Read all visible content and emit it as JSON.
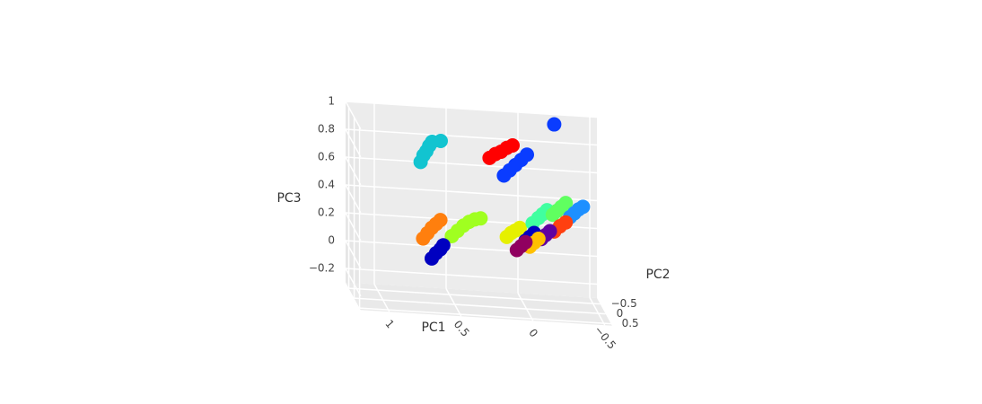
{
  "chart_data": {
    "type": "scatter3d",
    "xlabel": "PC1",
    "ylabel": "PC2",
    "zlabel": "PC3",
    "xlim": [
      -0.55,
      1.2
    ],
    "ylim": [
      -0.8,
      0.6
    ],
    "zlim": [
      -0.3,
      1.0
    ],
    "xticks": [
      {
        "value": -0.5,
        "label": "−0.5"
      },
      0,
      0.5,
      1
    ],
    "yticks": [
      {
        "value": -0.5,
        "label": "−0.5"
      },
      0,
      0.5
    ],
    "zticks": [
      {
        "value": -0.2,
        "label": "−0.2"
      },
      0,
      0.2,
      0.4,
      0.6,
      0.8,
      1
    ],
    "grid": true,
    "series": [
      {
        "color": "#12c4d0",
        "x": [
          0.7,
          0.68,
          0.66,
          0.64,
          0.62,
          0.56
        ],
        "y": [
          -0.5,
          -0.5,
          -0.5,
          -0.5,
          -0.5,
          -0.5
        ],
        "z": [
          0.64,
          0.69,
          0.72,
          0.76,
          0.79,
          0.8
        ]
      },
      {
        "color": "#ff0000",
        "x": [
          0.22,
          0.18,
          0.14,
          0.1,
          0.06
        ],
        "y": [
          -0.5,
          -0.5,
          -0.5,
          -0.5,
          -0.5
        ],
        "z": [
          0.7,
          0.73,
          0.75,
          0.78,
          0.8
        ]
      },
      {
        "color": "#0a3cff",
        "x": [
          0.12,
          0.08,
          0.04,
          0.0,
          -0.04,
          -0.23
        ],
        "y": [
          -0.5,
          -0.5,
          -0.5,
          -0.5,
          -0.5,
          -0.5
        ],
        "z": [
          0.58,
          0.62,
          0.66,
          0.7,
          0.74,
          0.97
        ]
      },
      {
        "color": "#ff7f0e",
        "x": [
          0.72,
          0.69,
          0.66,
          0.63,
          0.6
        ],
        "y": [
          0,
          0,
          0,
          0,
          0
        ],
        "z": [
          0.16,
          0.2,
          0.24,
          0.27,
          0.3
        ]
      },
      {
        "color": "#a0ff20",
        "x": [
          0.52,
          0.48,
          0.44,
          0.4,
          0.36,
          0.32
        ],
        "y": [
          0,
          0,
          0,
          0,
          0,
          0
        ],
        "z": [
          0.19,
          0.23,
          0.27,
          0.3,
          0.32,
          0.33
        ]
      },
      {
        "color": "#0000c0",
        "x": [
          0.66,
          0.63,
          0.6,
          0.58
        ],
        "y": [
          0,
          0,
          0,
          0
        ],
        "z": [
          0.02,
          0.06,
          0.09,
          0.12
        ]
      },
      {
        "color": "#e6f000",
        "x": [
          0.16,
          0.13,
          0.1,
          0.07
        ],
        "y": [
          0.3,
          0.3,
          0.3,
          0.3
        ],
        "z": [
          0.25,
          0.28,
          0.3,
          0.32
        ]
      },
      {
        "color": "#40ffa0",
        "x": [
          -0.02,
          -0.06,
          -0.09,
          -0.12
        ],
        "y": [
          0.3,
          0.3,
          0.3,
          0.3
        ],
        "z": [
          0.36,
          0.4,
          0.43,
          0.46
        ]
      },
      {
        "color": "#60ff60",
        "x": [
          -0.16,
          -0.19,
          -0.22,
          -0.25
        ],
        "y": [
          0.3,
          0.3,
          0.3,
          0.3
        ],
        "z": [
          0.43,
          0.46,
          0.49,
          0.52
        ]
      },
      {
        "color": "#1e90ff",
        "x": [
          -0.28,
          -0.31,
          -0.34,
          -0.37
        ],
        "y": [
          0.3,
          0.3,
          0.3,
          0.3
        ],
        "z": [
          0.42,
          0.45,
          0.48,
          0.5
        ]
      },
      {
        "color": "#0000c0",
        "x": [
          0.03,
          0.0,
          -0.03
        ],
        "y": [
          0.3,
          0.3,
          0.3
        ],
        "z": [
          0.23,
          0.26,
          0.29
        ]
      },
      {
        "color": "#ff4010",
        "x": [
          -0.17,
          -0.21,
          -0.25
        ],
        "y": [
          0.3,
          0.3,
          0.3
        ],
        "z": [
          0.31,
          0.35,
          0.38
        ]
      },
      {
        "color": "#6000a0",
        "x": [
          -0.08,
          -0.11,
          -0.14
        ],
        "y": [
          0.3,
          0.3,
          0.3
        ],
        "z": [
          0.25,
          0.28,
          0.31
        ]
      },
      {
        "color": "#ffc000",
        "x": [
          0.0,
          -0.03,
          -0.06
        ],
        "y": [
          0.3,
          0.3,
          0.3
        ],
        "z": [
          0.19,
          0.22,
          0.25
        ]
      },
      {
        "color": "#900060",
        "x": [
          0.09,
          0.06,
          0.03
        ],
        "y": [
          0.3,
          0.3,
          0.3
        ],
        "z": [
          0.16,
          0.19,
          0.22
        ]
      }
    ]
  }
}
